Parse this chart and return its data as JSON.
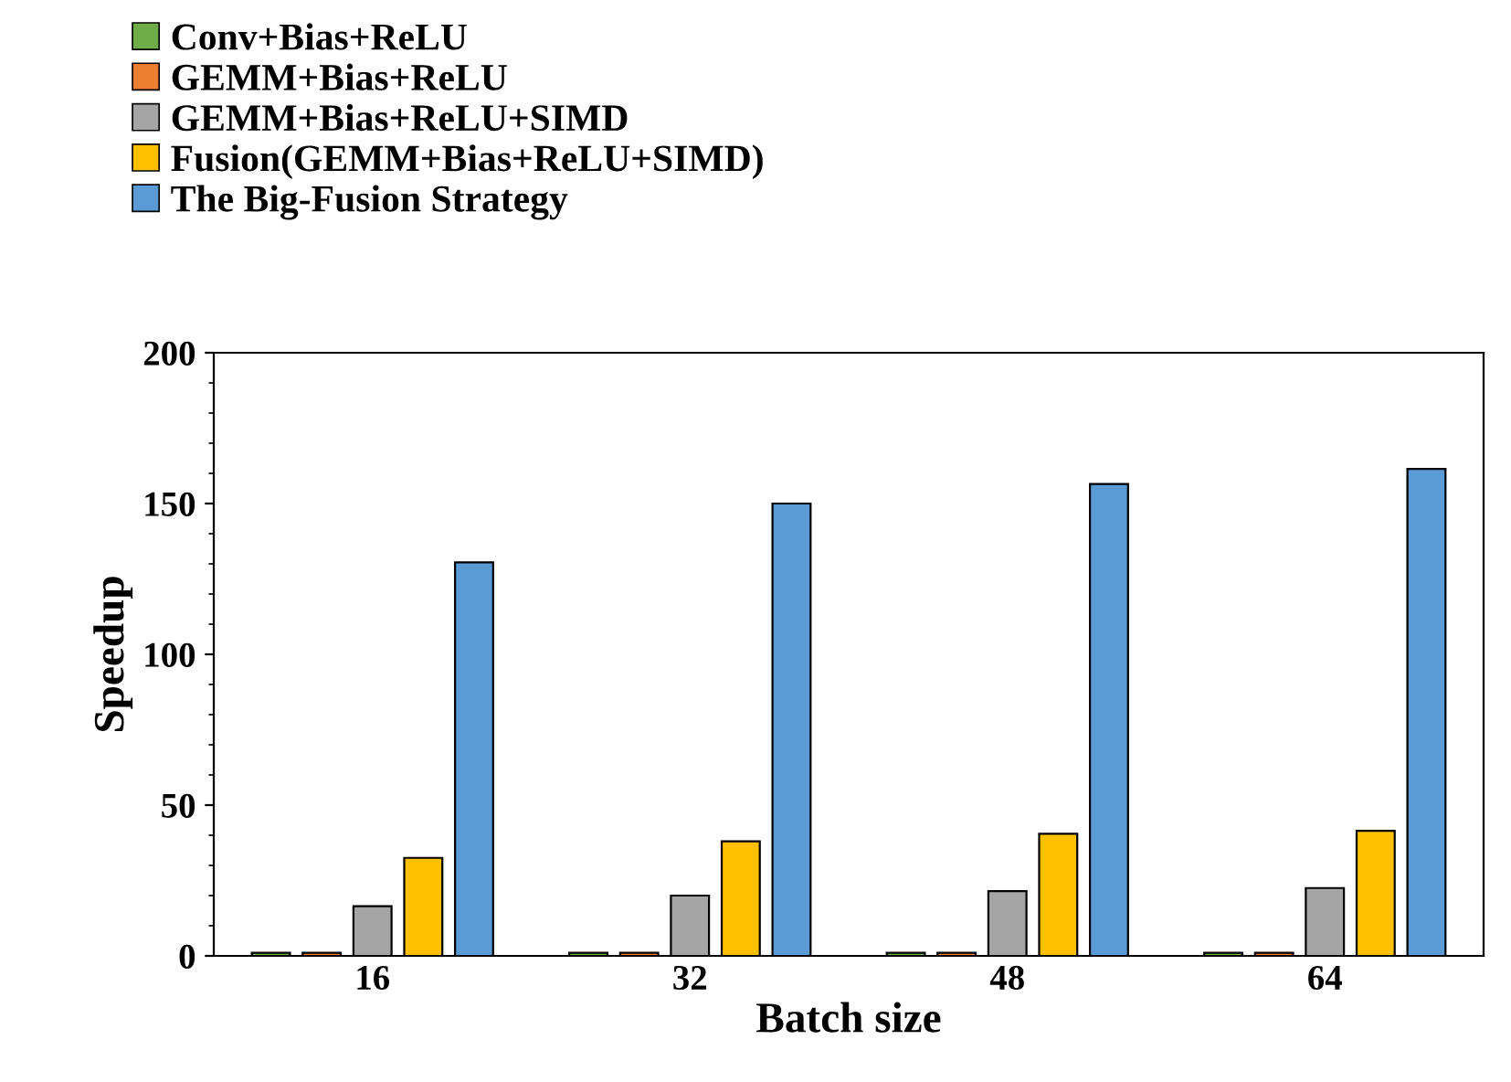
{
  "chart_data": {
    "type": "bar",
    "xlabel": "Batch size",
    "ylabel": "Speedup",
    "categories": [
      "16",
      "32",
      "48",
      "64"
    ],
    "series": [
      {
        "name": "Conv+Bias+ReLU",
        "color": "#70ad47",
        "values": [
          1,
          1,
          1,
          1
        ]
      },
      {
        "name": "GEMM+Bias+ReLU",
        "color": "#ed7d31",
        "values": [
          1,
          1,
          1,
          1
        ]
      },
      {
        "name": "GEMM+Bias+ReLU+SIMD",
        "color": "#a5a5a5",
        "values": [
          16.5,
          20,
          21.5,
          22.5
        ]
      },
      {
        "name": "Fusion(GEMM+Bias+ReLU+SIMD)",
        "color": "#ffc000",
        "values": [
          32.5,
          38,
          40.5,
          41.5
        ]
      },
      {
        "name": "The Big-Fusion Strategy",
        "color": "#5b9bd5",
        "values": [
          130.5,
          150,
          156.5,
          161.5
        ]
      }
    ],
    "ylim": [
      0,
      200
    ],
    "yticks": [
      0,
      50,
      100,
      150,
      200
    ],
    "grid": false,
    "legend": "top left"
  }
}
